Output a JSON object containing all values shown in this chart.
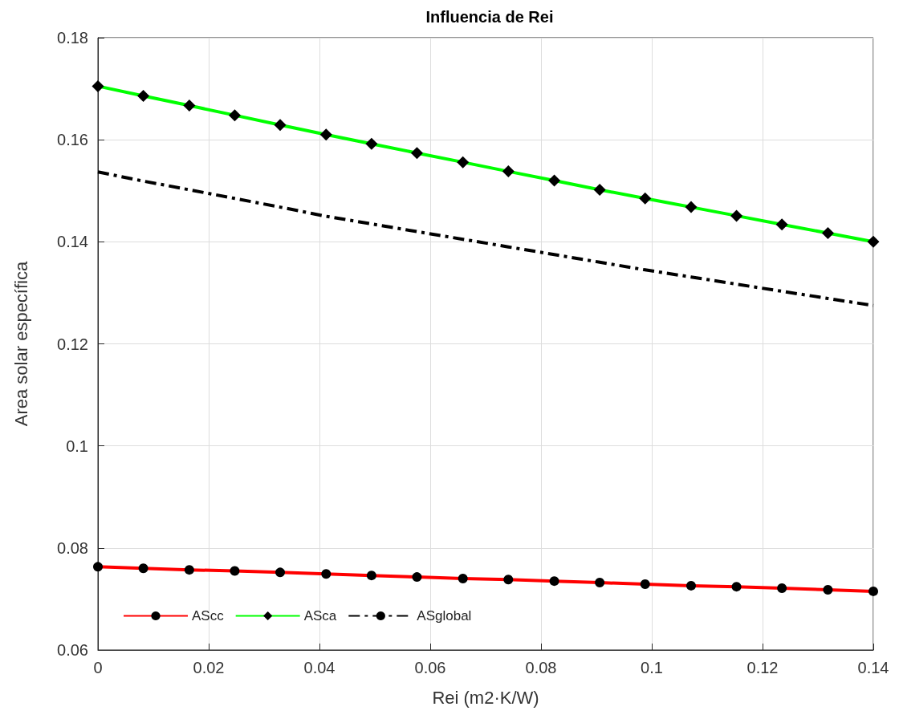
{
  "chart_data": {
    "type": "line",
    "title": "Influencia de Rei",
    "xlabel": "Rei (m2·K/W)",
    "ylabel": "Area solar específica",
    "x": [
      0,
      0.0082,
      0.0165,
      0.0247,
      0.0329,
      0.0412,
      0.0494,
      0.0576,
      0.0659,
      0.0741,
      0.0824,
      0.0906,
      0.0988,
      0.1071,
      0.1153,
      0.1235,
      0.1318,
      0.14
    ],
    "series": [
      {
        "name": "AScc",
        "color": "#ff0000",
        "marker": "circle",
        "line_style": "solid",
        "values": [
          0.0763,
          0.076,
          0.0757,
          0.0755,
          0.0752,
          0.0749,
          0.0746,
          0.0743,
          0.074,
          0.0738,
          0.0735,
          0.0732,
          0.0729,
          0.0726,
          0.0724,
          0.0721,
          0.0718,
          0.0715
        ]
      },
      {
        "name": "ASca",
        "color": "#00ff00",
        "marker": "diamond",
        "line_style": "solid",
        "values": [
          0.1705,
          0.1686,
          0.1667,
          0.1648,
          0.1629,
          0.161,
          0.1592,
          0.1574,
          0.1556,
          0.1538,
          0.152,
          0.1502,
          0.1485,
          0.1468,
          0.1451,
          0.1434,
          0.1417,
          0.14
        ]
      },
      {
        "name": "ASglobal",
        "color": "#000000",
        "marker": "none",
        "line_style": "dashed",
        "values": [
          0.1537,
          0.1519,
          0.1502,
          0.1485,
          0.1468,
          0.145,
          0.1435,
          0.142,
          0.1405,
          0.139,
          0.1375,
          0.136,
          0.1345,
          0.1331,
          0.1317,
          0.1303,
          0.1289,
          0.1275
        ]
      }
    ],
    "xlim": [
      0,
      0.14
    ],
    "xticks": [
      0,
      0.02,
      0.04,
      0.06,
      0.08,
      0.1,
      0.12,
      0.14
    ],
    "ylim": [
      0.06,
      0.18
    ],
    "yticks": [
      0.06,
      0.08,
      0.1,
      0.12,
      0.14,
      0.16,
      0.18
    ],
    "grid": true,
    "legend": "bottom left"
  }
}
